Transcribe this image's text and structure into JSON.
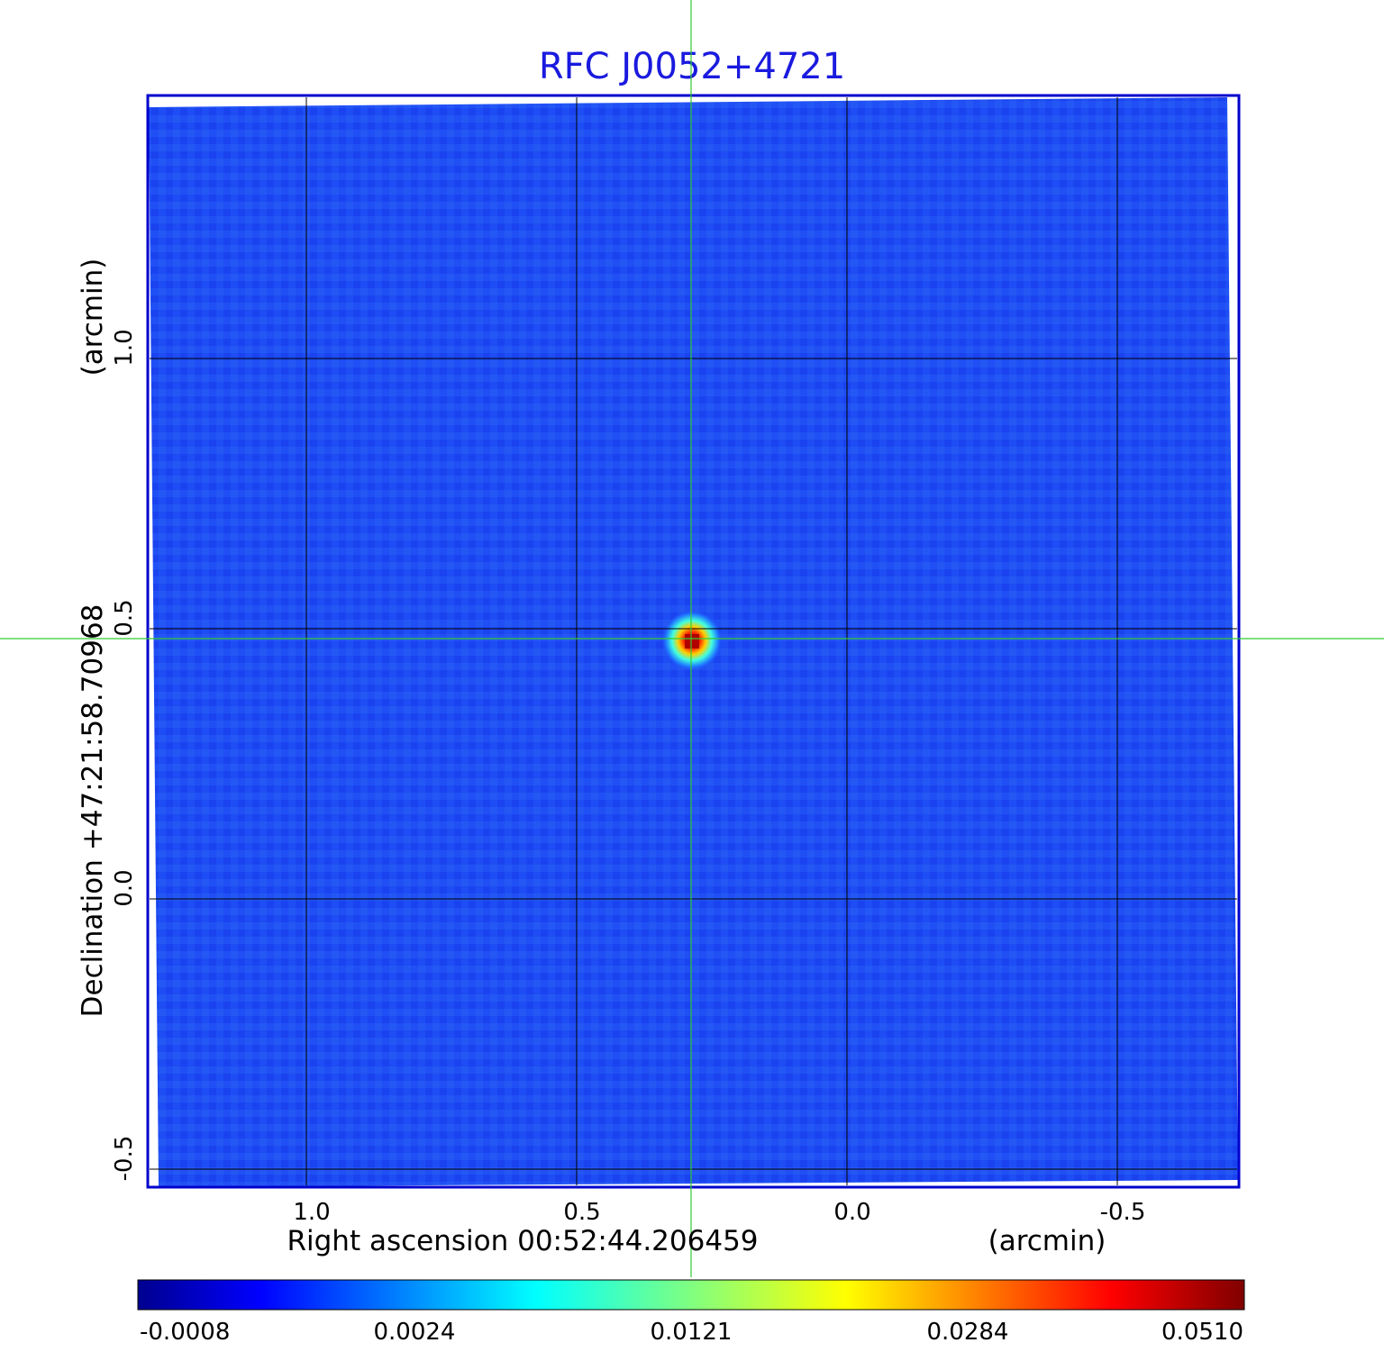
{
  "title": "RFC J0052+4721",
  "x_axis": {
    "label": "Right ascension  00:52:44.206459",
    "unit": "(arcmin)",
    "ticks": [
      "1.0",
      "0.5",
      "0.0",
      "-0.5"
    ],
    "tick_values": [
      1.0,
      0.5,
      0.0,
      -0.5
    ]
  },
  "y_axis": {
    "label": "Declination  +47:21:58.70968",
    "unit": "(arcmin)",
    "ticks": [
      "1.0",
      "0.5",
      "0.0",
      "-0.5"
    ],
    "tick_values": [
      1.0,
      0.5,
      0.0,
      -0.5
    ]
  },
  "colorbar": {
    "ticks": [
      "-0.0008",
      "0.0024",
      "0.0121",
      "0.0284",
      "0.0510"
    ]
  },
  "colors": {
    "title": "#1a1adf",
    "frame": "#0000cc",
    "background_map": "#1e4bf5",
    "crosshair": "#33cc33",
    "grid": "#000000"
  }
}
